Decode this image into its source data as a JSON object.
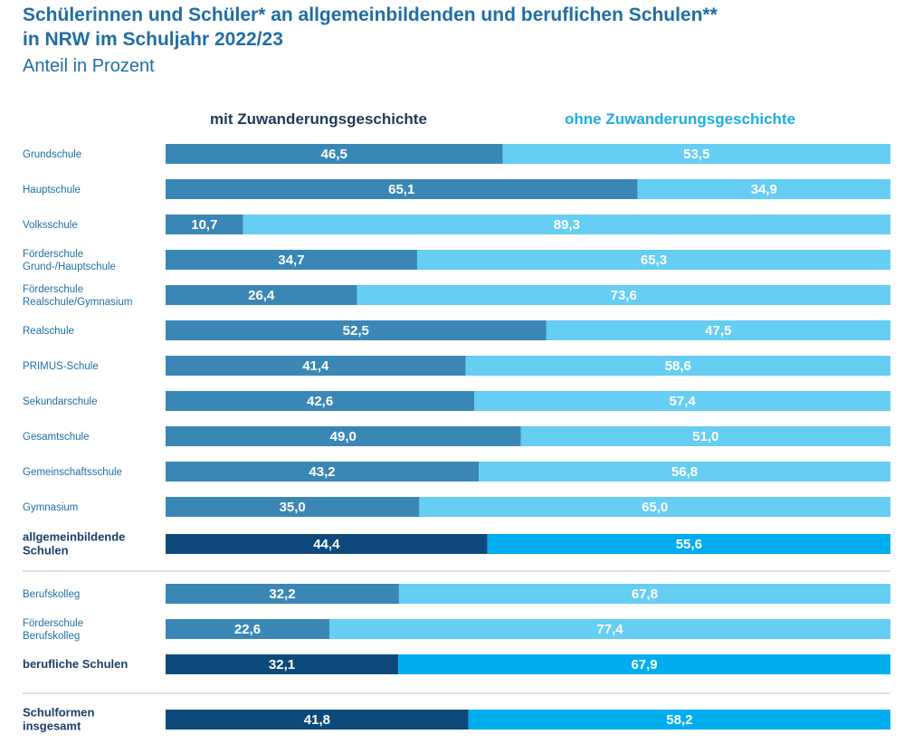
{
  "header": {
    "title_line1": "Schülerinnen und Schüler* an allgemeinbildenden und beruflichen Schulen**",
    "title_line2": "in NRW im Schuljahr 2022/23",
    "subtitle": "Anteil in Prozent"
  },
  "chart_data": {
    "type": "bar",
    "stacked": true,
    "orientation": "horizontal",
    "title": "Schülerinnen und Schüler* an allgemeinbildenden und beruflichen Schulen** in NRW im Schuljahr 2022/23",
    "subtitle": "Anteil in Prozent",
    "xlim": [
      0,
      100
    ],
    "legend_placement": "top",
    "grid": false,
    "categories": [
      "Grundschule",
      "Hauptschule",
      "Volksschule",
      "Förderschule Grund-/Hauptschule",
      "Förderschule Realschule/Gymnasium",
      "Realschule",
      "PRIMUS-Schule",
      "Sekundarschule",
      "Gesamtschule",
      "Gemeinschaftsschule",
      "Gymnasium",
      "allgemeinbildende Schulen",
      "Berufskolleg",
      "Förderschule Berufskolleg",
      "berufliche Schulen",
      "Schulformen insgesamt"
    ],
    "category_lines": [
      [
        "Grundschule"
      ],
      [
        "Hauptschule"
      ],
      [
        "Volksschule"
      ],
      [
        "Förderschule",
        "Grund-/Hauptschule"
      ],
      [
        "Förderschule",
        "Realschule/Gymnasium"
      ],
      [
        "Realschule"
      ],
      [
        "PRIMUS-Schule"
      ],
      [
        "Sekundarschule"
      ],
      [
        "Gesamtschule"
      ],
      [
        "Gemeinschaftsschule"
      ],
      [
        "Gymnasium"
      ],
      [
        "allgemeinbildende",
        "Schulen"
      ],
      [
        "Berufskolleg"
      ],
      [
        "Förderschule",
        "Berufskolleg"
      ],
      [
        "berufliche Schulen"
      ],
      [
        "Schulformen",
        "insgesamt"
      ]
    ],
    "summary_rows": [
      11,
      14,
      15
    ],
    "series": [
      {
        "name": "mit Zuwanderungsgeschichte",
        "values": [
          46.5,
          65.1,
          10.7,
          34.7,
          26.4,
          52.5,
          41.4,
          42.6,
          49.0,
          43.2,
          35.0,
          44.4,
          32.2,
          22.6,
          32.1,
          41.8
        ],
        "labels": [
          "46,5",
          "65,1",
          "10,7",
          "34,7",
          "26,4",
          "52,5",
          "41,4",
          "42,6",
          "49,0",
          "43,2",
          "35,0",
          "44,4",
          "32,2",
          "22,6",
          "32,1",
          "41,8"
        ]
      },
      {
        "name": "ohne Zuwanderungsgeschichte",
        "values": [
          53.5,
          34.9,
          89.3,
          65.3,
          73.6,
          47.5,
          58.6,
          57.4,
          51.0,
          56.8,
          65.0,
          55.6,
          67.8,
          77.4,
          67.9,
          58.2
        ],
        "labels": [
          "53,5",
          "34,9",
          "89,3",
          "65,3",
          "73,6",
          "47,5",
          "58,6",
          "57,4",
          "51,0",
          "56,8",
          "65,0",
          "55,6",
          "67,8",
          "77,4",
          "67,9",
          "58,2"
        ]
      }
    ],
    "colors": {
      "mit": "#3a87b6",
      "ohne": "#66cdf3",
      "mit_summary": "#0d4a7b",
      "ohne_summary": "#00aeef",
      "title": "#1f6ea3",
      "row_label": "#1f6ea3",
      "legend_mit": "#1c3a57",
      "legend_ohne": "#19aee6",
      "separator": "#bfbfbf"
    }
  }
}
